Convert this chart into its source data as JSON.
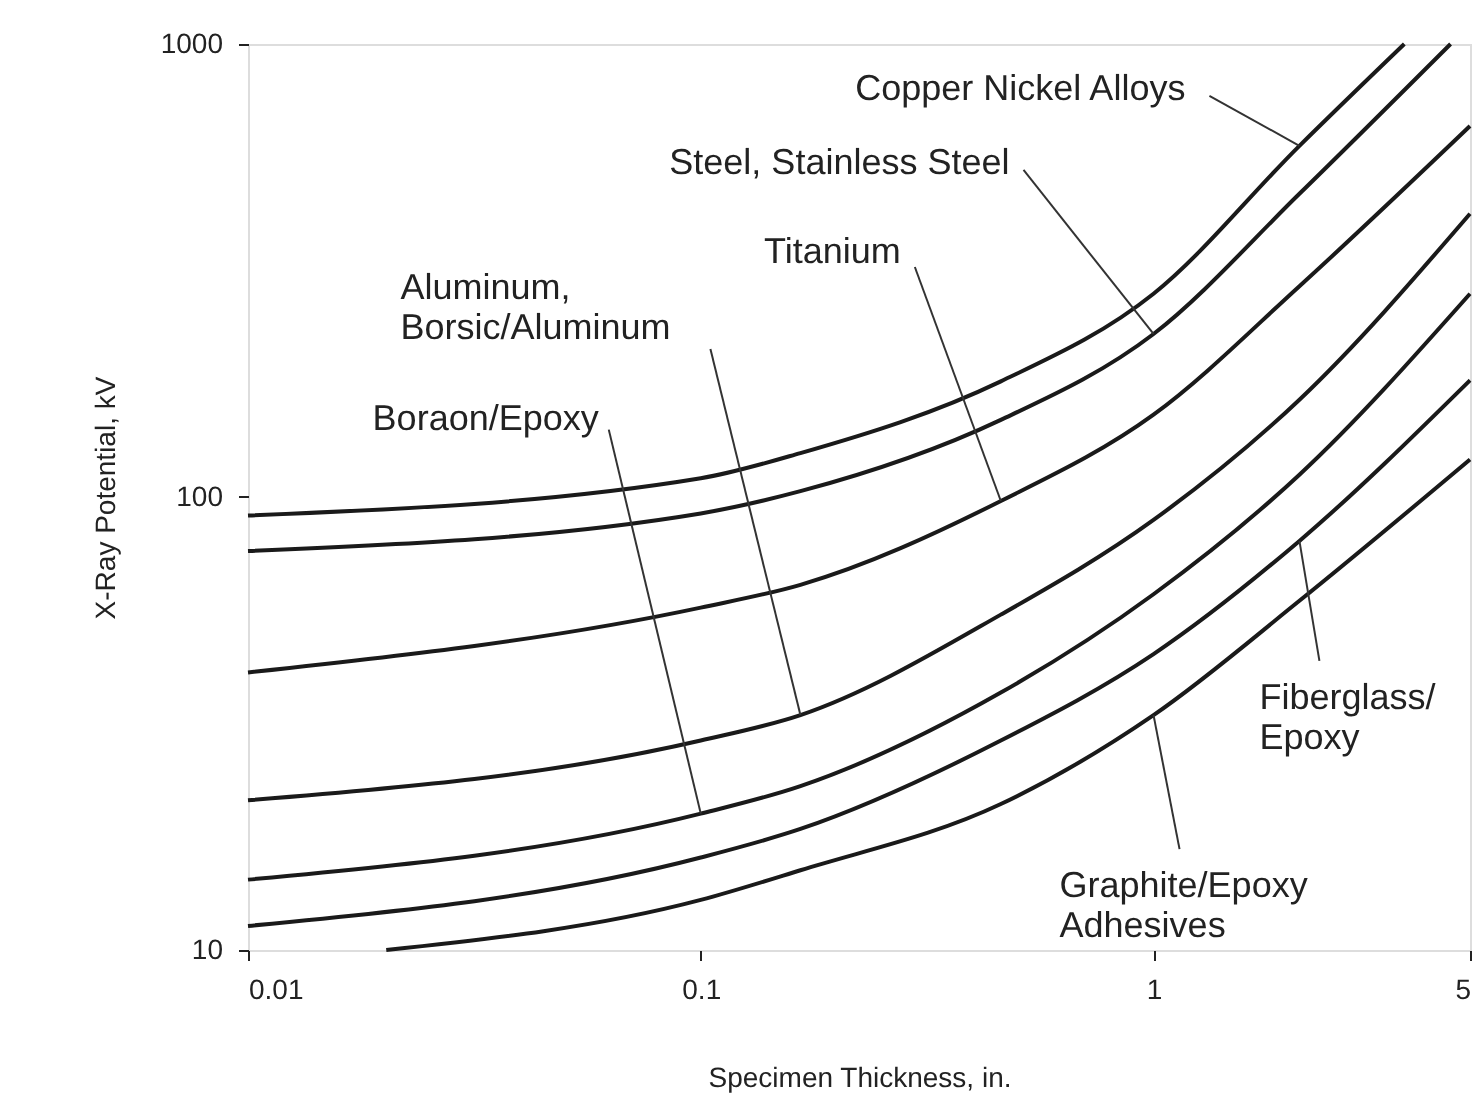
{
  "chart_data": {
    "type": "line",
    "xlabel": "Specimen Thickness, in.",
    "ylabel": "X-Ray Potential, kV",
    "log": "xy",
    "xlim": [
      0.01,
      5
    ],
    "ylim": [
      10,
      1000
    ],
    "xticks": [
      0.01,
      0.1,
      1,
      5
    ],
    "yticks": [
      10,
      100,
      1000
    ],
    "grid": false,
    "marker": "none",
    "line_style": "solid",
    "series": [
      {
        "color": "#1a1a1a",
        "x": [
          0.01,
          0.1,
          0.166,
          0.46,
          1.0,
          2.1,
          3.58
        ],
        "values": [
          91,
          110,
          125,
          180,
          281,
          596,
          1000
        ]
      },
      {
        "color": "#1a1a1a",
        "x": [
          0.01,
          0.1,
          0.166,
          0.46,
          1.0,
          2.1,
          4.53
        ],
        "values": [
          76,
          92,
          103,
          148,
          229,
          467,
          1000
        ]
      },
      {
        "color": "#1a1a1a",
        "x": [
          0.01,
          0.1,
          0.166,
          0.46,
          1.0,
          2.1,
          5
        ],
        "values": [
          41,
          57,
          64,
          98,
          152,
          292,
          659
        ]
      },
      {
        "color": "#1a1a1a",
        "x": [
          0.01,
          0.1,
          0.166,
          0.46,
          1.0,
          2.1,
          5
        ],
        "values": [
          21.4,
          29,
          33,
          55,
          89,
          164,
          422
        ]
      },
      {
        "color": "#1a1a1a",
        "x": [
          0.01,
          0.1,
          0.166,
          0.46,
          1.0,
          2.1,
          5
        ],
        "values": [
          14.3,
          20,
          23,
          37,
          61,
          112,
          281
        ]
      },
      {
        "color": "#1a1a1a",
        "x": [
          0.01,
          0.1,
          0.166,
          0.46,
          1.0,
          2.1,
          5
        ],
        "values": [
          11.3,
          16,
          18.5,
          29,
          45,
          80,
          181
        ]
      },
      {
        "color": "#1a1a1a",
        "x": [
          0.0202,
          0.1,
          0.166,
          0.46,
          1.0,
          2.1,
          5
        ],
        "values": [
          10,
          12.9,
          15,
          21,
          33,
          59,
          121
        ]
      }
    ],
    "annotations": [
      {
        "text": "Copper Nickel Alloys",
        "x": 2.1,
        "y": 596
      },
      {
        "text": "Steel, Stainless Steel",
        "x": 1.0,
        "y": 229
      },
      {
        "text": "Titanium",
        "x": 0.46,
        "y": 98
      },
      {
        "text": "Aluminum,\nBorsic/Aluminum",
        "x": 0.166,
        "y": 33
      },
      {
        "text": "Boraon/Epoxy",
        "x": 0.1,
        "y": 20
      },
      {
        "text": "Fiberglass/\nEpoxy",
        "x": 2.1,
        "y": 80
      },
      {
        "text": "Graphite/Epoxy\nAdhesives",
        "x": 1.0,
        "y": 33
      }
    ]
  }
}
